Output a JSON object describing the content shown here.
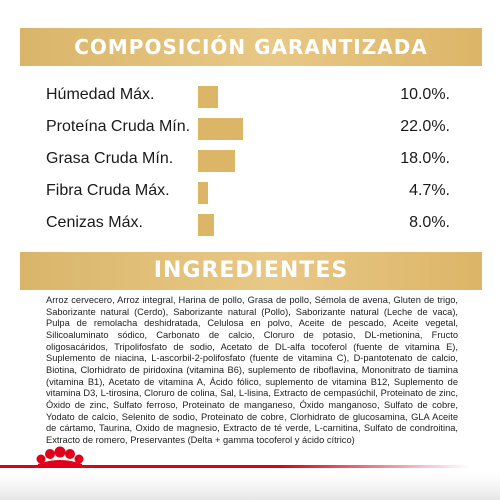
{
  "sections": {
    "composition_title": "COMPOSICIÓN GARANTIZADA",
    "ingredients_title": "INGREDIENTES"
  },
  "nutrients": [
    {
      "label": "Húmedad Máx.",
      "value": "10.0%.",
      "level": 10.0
    },
    {
      "label": "Proteína Cruda Mín.",
      "value": "22.0%.",
      "level": 22.0
    },
    {
      "label": "Grasa Cruda Mín.",
      "value": "18.0%.",
      "level": 18.0
    },
    {
      "label": "Fibra Cruda Máx.",
      "value": "4.7%.",
      "level": 4.7
    },
    {
      "label": "Cenizas Máx.",
      "value": "8.0%.",
      "level": 8.0
    }
  ],
  "ingredients_text": "Arroz cervecero, Arroz integral, Harina de pollo, Grasa de pollo, Sémola de avena, Gluten de trigo, Saborizante natural (Cerdo), Saborizante natural (Pollo), Saborizante natural (Leche de vaca), Pulpa de remolacha deshidratada, Celulosa en polvo, Aceite de pescado, Aceite vegetal, Silicoaluminato sódico, Carbonato de calcio, Cloruro de potasio, DL-metionina, Fructo oligosacáridos, Tripolifosfato de sodio, Acetato de DL-alfa tocoferol (fuente de vitamina E), Suplemento de niacina, L-ascorbil-2-polifosfato (fuente de vitamina C), D-pantotenato de calcio, Biotina, Clorhidrato de piridoxina (vitamina B6), suplemento de riboflavina, Mononitrato de tiamina (vitamina B1), Acetato de vitamina A, Ácido fólico, suplemento de vitamina B12, Suplemento de vitamina D3, L-tirosina, Cloruro de colina, Sal, L-lisina, Extracto de cempasúchil, Proteinato de zinc, Óxido de zinc, Sulfato ferroso, Proteinato de manganeso, Óxido manganoso, Sulfato de cobre, Yodato de calcio, Selenito de sodio, Proteinato de cobre, Clorhidrato de glucosamina, GLA Aceite de cártamo, Taurina, Oxido de magnesio, Extracto de té verde, L-carnitina, Sulfato de condroitina, Extracto de romero, Preservantes (Delta + gamma tocoferol y ácido cítrico)",
  "colors": {
    "banner_gold": "#e3c27c",
    "bar_gold": "#dbb667",
    "brand_red": "#e1001a"
  },
  "icons": {
    "footer_logo": "royal-crown-icon"
  }
}
